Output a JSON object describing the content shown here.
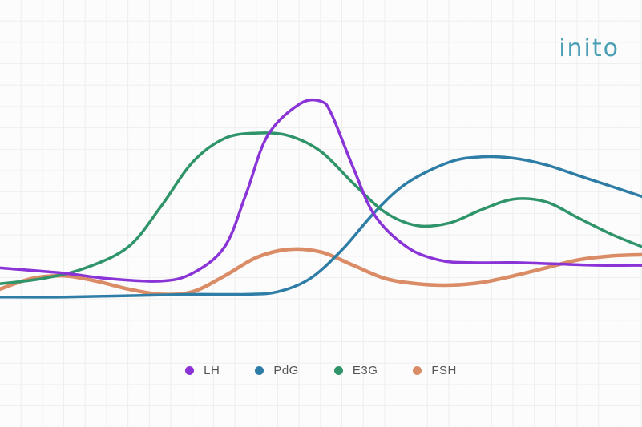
{
  "brand": {
    "logo_text": "inito"
  },
  "chart_data": {
    "type": "line",
    "title": "",
    "xlabel": "",
    "ylabel": "",
    "xlim": [
      0,
      30
    ],
    "ylim": [
      0,
      100
    ],
    "grid": true,
    "legend_position": "bottom",
    "series": [
      {
        "name": "LH",
        "color": "#8a33d6",
        "x": [
          0,
          3,
          5,
          7.5,
          9,
          10.5,
          11.5,
          12.5,
          14,
          15,
          15.5,
          16.5,
          17.5,
          19,
          20.5,
          22,
          24,
          26,
          28,
          30
        ],
        "y": [
          32,
          30,
          28,
          27,
          30,
          40,
          60,
          82,
          94,
          95,
          90,
          70,
          52,
          40,
          35,
          34,
          34,
          33.5,
          33,
          33
        ]
      },
      {
        "name": "PdG",
        "color": "#2e7da6",
        "x": [
          0,
          3,
          6,
          9,
          11.5,
          13,
          14.5,
          16,
          17.5,
          19,
          21,
          22.5,
          24,
          25.5,
          27,
          28.5,
          30
        ],
        "y": [
          21,
          21,
          21.5,
          22,
          22,
          23,
          28,
          39,
          53,
          64,
          72,
          74,
          73.5,
          71,
          67,
          63,
          59
        ]
      },
      {
        "name": "E3G",
        "color": "#2f946a",
        "x": [
          0,
          2,
          4,
          6,
          7.5,
          9,
          10.5,
          12,
          13.5,
          15,
          16.5,
          18,
          19.5,
          21,
          22.5,
          24,
          25.5,
          27,
          28.5,
          30
        ],
        "y": [
          26,
          28,
          32,
          40,
          55,
          72,
          81,
          83,
          82,
          76,
          64,
          53,
          48,
          49,
          54,
          58,
          57,
          51,
          45,
          40
        ]
      },
      {
        "name": "FSH",
        "color": "#d98c66",
        "x": [
          0,
          1.5,
          3,
          4.5,
          6,
          7.5,
          9,
          10.5,
          12,
          13.5,
          15,
          16.5,
          18,
          19.5,
          21,
          22.5,
          24,
          25.5,
          27,
          28.5,
          30
        ],
        "y": [
          24,
          28,
          29,
          27,
          24,
          22,
          23,
          29,
          36,
          39,
          38,
          33,
          28,
          26,
          25.5,
          26.5,
          29,
          32,
          35,
          36.5,
          37
        ]
      }
    ]
  }
}
